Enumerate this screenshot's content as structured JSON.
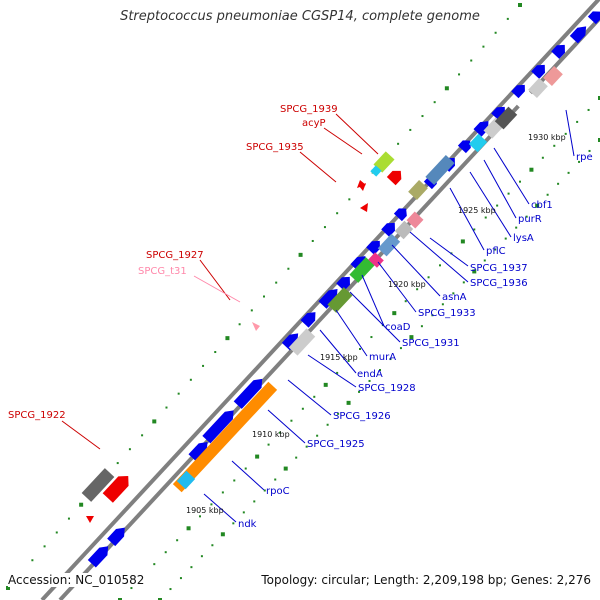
{
  "title": "Streptococcus pneumoniae CGSP14, complete genome",
  "footer": {
    "accession": "Accession: NC_010582",
    "summary": "Topology: circular; Length: 2,209,198 bp; Genes: 2,276"
  },
  "colors": {
    "backbone": "#808080",
    "cds_forward": "#0000ee",
    "cds_reverse": "#ee0000",
    "rrna": "#ff8c00",
    "trna": "#ff99aa",
    "label_reverse": "#cc0000",
    "label_forward": "#0000cc",
    "label_trna": "#ff88aa",
    "tick_dot": "#228822"
  },
  "scale_labels": [
    "1905 kbp",
    "1910 kbp",
    "1915 kbp",
    "1920 kbp",
    "1925 kbp",
    "1930 kbp"
  ],
  "forward_labels": [
    "ndk",
    "rpoC",
    "SPCG_1925",
    "SPCG_1926",
    "SPCG_1928",
    "endA",
    "murA",
    "SPCG_1931",
    "coaD",
    "SPCG_1933",
    "asnA",
    "SPCG_1936",
    "SPCG_1937",
    "pflC",
    "lysA",
    "purR",
    "cbf1",
    "rpe"
  ],
  "reverse_labels": [
    "SPCG_1922",
    "SPCG_1927",
    "SPCG_t31",
    "SPCG_1935",
    "SPCG_1939",
    "acyP"
  ]
}
